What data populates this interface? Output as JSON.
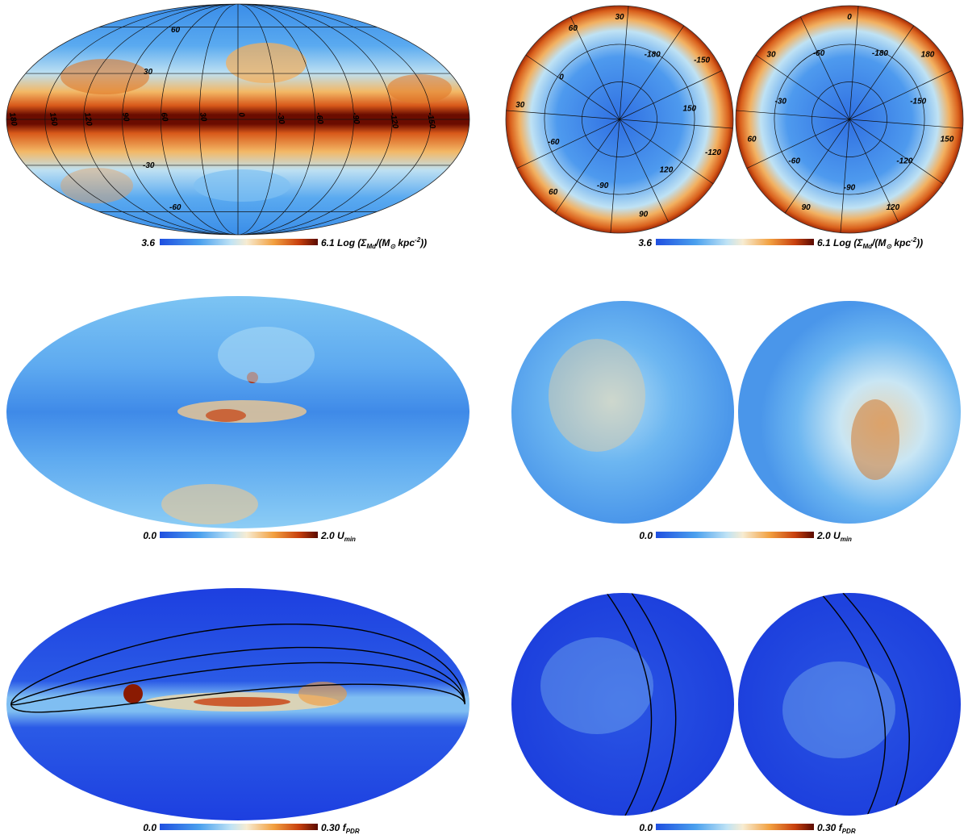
{
  "colors": {
    "low": "#1f4fe0",
    "mid_low": "#5fb8f0",
    "mid": "#f7f2e6",
    "mid_high": "#f29a3a",
    "high": "#c0320a",
    "top": "#5a0a00",
    "grid": "#111111",
    "ecliptic": "#000000"
  },
  "rows": [
    {
      "quantity": "dust-mass-surface-density",
      "colorbar_left": {
        "min_label": "3.6",
        "max_label": "6.1",
        "unit_prefix": "Log (Σ",
        "unit_sub": "Md",
        "unit_mid": "/(M",
        "unit_sun": "⊙",
        "unit_kpc": " kpc",
        "unit_exp": "-2",
        "unit_end": "))"
      },
      "colorbar_right": {
        "min_label": "3.6",
        "max_label": "6.1",
        "unit_prefix": "Log (Σ",
        "unit_sub": "Md",
        "unit_mid": "/(M",
        "unit_sun": "⊙",
        "unit_kpc": " kpc",
        "unit_exp": "-2",
        "unit_end": "))"
      },
      "mollweide_longitude_labels": [
        "180",
        "150",
        "120",
        "90",
        "60",
        "30",
        "0",
        "-30",
        "-60",
        "-90",
        "-120",
        "-150"
      ],
      "mollweide_latitude_labels": [
        "60",
        "30",
        "-30",
        "-60"
      ],
      "north_polar_labels": [
        "30",
        "-180",
        "-150",
        "150",
        "-120",
        "120",
        "90",
        "-90",
        "60",
        "-60",
        "30",
        "0",
        "60"
      ],
      "south_polar_labels": [
        "0",
        "-180",
        "180",
        "-150",
        "150",
        "-120",
        "120",
        "-90",
        "90",
        "-60",
        "60",
        "-30",
        "30",
        "-60"
      ]
    },
    {
      "quantity": "u-min",
      "colorbar_left": {
        "min_label": "0.0",
        "max_label": "2.0",
        "unit": "U",
        "unit_sub": "min"
      },
      "colorbar_right": {
        "min_label": "0.0",
        "max_label": "2.0",
        "unit": "U",
        "unit_sub": "min"
      }
    },
    {
      "quantity": "f-pdr",
      "colorbar_left": {
        "min_label": "0.0",
        "max_label": "0.30",
        "unit": "f",
        "unit_sub": "PDR"
      },
      "colorbar_right": {
        "min_label": "0.0",
        "max_label": "0.30",
        "unit": "f",
        "unit_sub": "PDR"
      }
    }
  ]
}
